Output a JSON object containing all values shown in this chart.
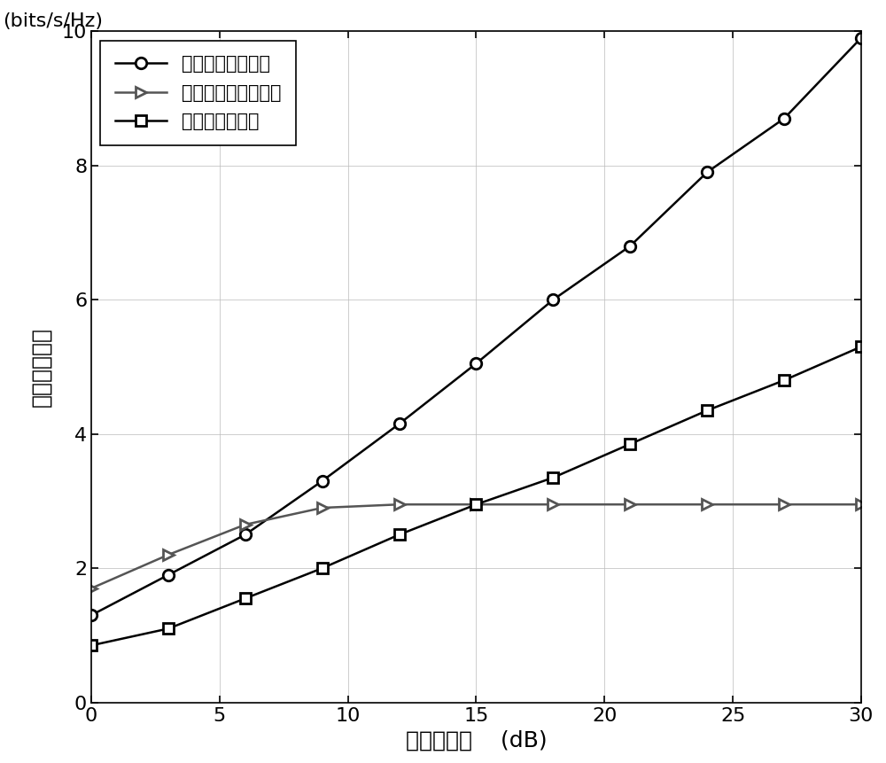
{
  "x": [
    0,
    3,
    6,
    9,
    12,
    15,
    18,
    21,
    24,
    27,
    30
  ],
  "series1_y": [
    1.3,
    1.9,
    2.5,
    3.3,
    4.15,
    5.05,
    6.0,
    6.8,
    7.9,
    8.7,
    9.9
  ],
  "series2_y": [
    1.7,
    2.2,
    2.65,
    2.9,
    2.95,
    2.95,
    2.95,
    2.95,
    2.95,
    2.95,
    2.95
  ],
  "series3_y": [
    0.85,
    1.1,
    1.55,
    2.0,
    2.5,
    2.95,
    3.35,
    3.85,
    4.35,
    4.8,
    5.3
  ],
  "series1_label": "本发明的传输方案",
  "series2_label": "无自干扰消除的方案",
  "series3_label": "两时隙传输方案",
  "xlabel_cn": "发送信噪比",
  "xlabel_en": "(dB)",
  "ylabel_cn": "系统安全速率",
  "ylabel_en": "(bits/s/Hz)",
  "xlim": [
    0,
    30
  ],
  "ylim": [
    0,
    10
  ],
  "xticks": [
    0,
    5,
    10,
    15,
    20,
    25,
    30
  ],
  "yticks": [
    0,
    2,
    4,
    6,
    8,
    10
  ],
  "color_black": "#000000",
  "color_gray": "#555555",
  "linewidth": 1.8,
  "markersize": 9,
  "label_fontsize": 18,
  "tick_fontsize": 16,
  "legend_fontsize": 15,
  "background_color": "#ffffff"
}
